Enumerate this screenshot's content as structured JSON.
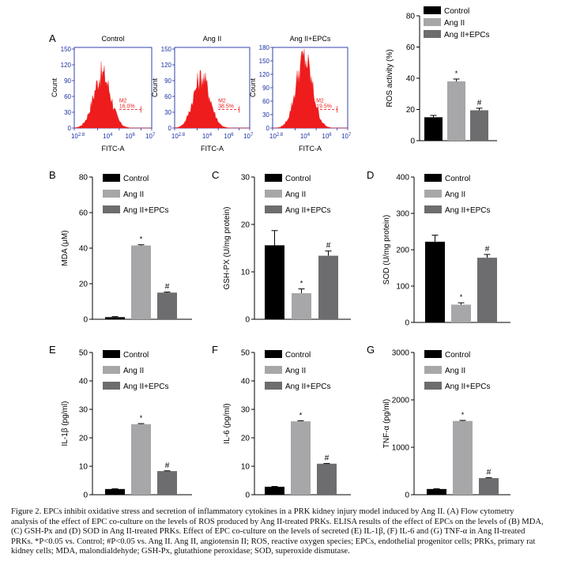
{
  "flow": {
    "panel_letter": "A",
    "xlabel": "FITC-A",
    "ylabel": "Count",
    "x_ticks": [
      "10",
      "2.8",
      "10",
      "4",
      "10",
      "6",
      "10",
      "7"
    ],
    "panels": [
      {
        "title": "Control",
        "gate": "M2",
        "pct": "16.0%",
        "y_ticks": [
          "0",
          "30",
          "60",
          "90",
          "120",
          "150"
        ]
      },
      {
        "title": "Ang II",
        "gate": "M2",
        "pct": "38.5%",
        "y_ticks": [
          "0",
          "30",
          "60",
          "90",
          "120",
          "150"
        ]
      },
      {
        "title": "Ang II+EPCs",
        "gate": "M2",
        "pct": "19.5%",
        "y_ticks": [
          "0",
          "30",
          "60",
          "90",
          "120",
          "150",
          "180"
        ]
      }
    ],
    "red": "#ee1c1c"
  },
  "legend": {
    "items": [
      "Control",
      "Ang II",
      "Ang II+EPCs"
    ],
    "colors": [
      "#000000",
      "#a7a7a9",
      "#6d6d6f"
    ]
  },
  "chart_data": [
    {
      "id": "ros",
      "type": "bar",
      "letter": "",
      "categories": [
        "Control",
        "Ang II",
        "Ang II+EPCs"
      ],
      "values": [
        15,
        38,
        19.5
      ],
      "errors": [
        1.2,
        1.5,
        1.3
      ],
      "marks": [
        "",
        "*",
        "#"
      ],
      "ylabel": "ROS activity (%)",
      "ylim": [
        0,
        80
      ],
      "yticks": [
        0,
        20,
        40,
        60,
        80
      ]
    },
    {
      "id": "mda",
      "type": "bar",
      "letter": "B",
      "categories": [
        "Control",
        "Ang II",
        "Ang II+EPCs"
      ],
      "values": [
        1.2,
        41.5,
        15
      ],
      "errors": [
        0.3,
        0.4,
        0.3
      ],
      "marks": [
        "",
        "*",
        "#"
      ],
      "ylabel": "MDA (μM)",
      "ylim": [
        0,
        80
      ],
      "yticks": [
        0,
        20,
        40,
        60,
        80
      ]
    },
    {
      "id": "gsh",
      "type": "bar",
      "letter": "C",
      "categories": [
        "Control",
        "Ang II",
        "Ang II+EPCs"
      ],
      "values": [
        15.6,
        5.5,
        13.4
      ],
      "errors": [
        3.1,
        0.9,
        1.0
      ],
      "marks": [
        "",
        "*",
        "#"
      ],
      "ylabel": "GSH-PX (U/mg protein)",
      "ylim": [
        0,
        30
      ],
      "yticks": [
        0,
        10,
        20,
        30
      ]
    },
    {
      "id": "sod",
      "type": "bar",
      "letter": "D",
      "categories": [
        "Control",
        "Ang II",
        "Ang II+EPCs"
      ],
      "values": [
        222,
        49,
        178
      ],
      "errors": [
        18,
        5,
        9
      ],
      "marks": [
        "",
        "*",
        "#"
      ],
      "ylabel": "SOD (U/mg protein)",
      "ylim": [
        0,
        400
      ],
      "yticks": [
        0,
        100,
        200,
        300,
        400
      ]
    },
    {
      "id": "il1b",
      "type": "bar",
      "letter": "E",
      "categories": [
        "Control",
        "Ang II",
        "Ang II+EPCs"
      ],
      "values": [
        2,
        24.8,
        8.3
      ],
      "errors": [
        0.1,
        0.2,
        0.1
      ],
      "marks": [
        "",
        "*",
        "#"
      ],
      "ylabel": "IL-1β (pg/ml)",
      "ylim": [
        0,
        50
      ],
      "yticks": [
        0,
        10,
        20,
        30,
        40,
        50
      ]
    },
    {
      "id": "il6",
      "type": "bar",
      "letter": "F",
      "categories": [
        "Control",
        "Ang II",
        "Ang II+EPCs"
      ],
      "values": [
        2.8,
        25.8,
        10.9
      ],
      "errors": [
        0.1,
        0.2,
        0.1
      ],
      "marks": [
        "",
        "*",
        "#"
      ],
      "ylabel": "IL-6 (pg/ml)",
      "ylim": [
        0,
        50
      ],
      "yticks": [
        0,
        10,
        20,
        30,
        40,
        50
      ]
    },
    {
      "id": "tnfa",
      "type": "bar",
      "letter": "G",
      "categories": [
        "Control",
        "Ang II",
        "Ang II+EPCs"
      ],
      "values": [
        120,
        1555,
        350
      ],
      "errors": [
        8,
        12,
        10
      ],
      "marks": [
        "",
        "*",
        "#"
      ],
      "ylabel": "TNF-α (pg/ml)",
      "ylim": [
        0,
        3000
      ],
      "yticks": [
        0,
        1000,
        2000,
        3000
      ]
    }
  ],
  "caption": {
    "lines": [
      "Figure 2. EPCs inhibit oxidative stress and secretion of inflammatory cytokines in a PRK kidney injury model induced by Ang II. (A) Flow cytometry",
      "analysis of the effect of EPC co-culture on the levels of ROS produced by Ang II-treated PRKs. ELISA results of the effect of EPCs on the levels of (B) MDA,",
      "(C) GSH-Px and (D) SOD in Ang II-treated PRKs. Effect of EPC co-culture on the levels of secreted (E) IL-1β, (F) IL-6 and (G) TNF-α in Ang II-treated",
      "PRKs. *P<0.05 vs. Control; #P<0.05 vs. Ang II. Ang II, angiotensin II; ROS, reactive oxygen species; EPCs, endothelial progenitor cells; PRKs, primary rat",
      "kidney cells; MDA, malondialdehyde; GSH-Px, glutathione peroxidase; SOD, superoxide dismutase."
    ]
  }
}
